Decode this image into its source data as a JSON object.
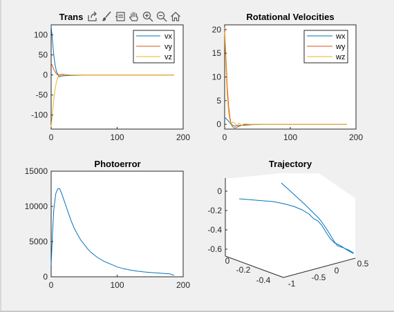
{
  "figure": {
    "background": "#f0f0f0",
    "colors": {
      "vx": "#0072bd",
      "vy": "#d95319",
      "vz": "#edb120",
      "trajectory": "#0072bd"
    }
  },
  "toolbar": {
    "icons": [
      "export-icon",
      "brush-icon",
      "data-tips-icon",
      "pan-icon",
      "zoom-in-icon",
      "zoom-out-icon",
      "home-icon"
    ]
  },
  "chart_data": [
    {
      "type": "line",
      "title": "Trans",
      "xlim": [
        0,
        200
      ],
      "ylim": [
        -135,
        125
      ],
      "xticks": [
        0,
        100,
        200
      ],
      "yticks": [
        -100,
        -50,
        0,
        50,
        100
      ],
      "legend": "top-right",
      "grid": false,
      "series": [
        {
          "name": "vx",
          "x": [
            0,
            2,
            4,
            6,
            8,
            10,
            12,
            15,
            20,
            30,
            50,
            80,
            120,
            186
          ],
          "y": [
            122,
            85,
            50,
            25,
            10,
            2,
            -5,
            -3,
            -2,
            -1,
            0,
            0,
            0,
            0
          ]
        },
        {
          "name": "vy",
          "x": [
            0,
            2,
            4,
            6,
            8,
            10,
            13,
            16,
            20,
            30,
            50,
            80,
            120,
            186
          ],
          "y": [
            30,
            22,
            14,
            8,
            3,
            0,
            0,
            2,
            1,
            0,
            0,
            0,
            0,
            0
          ]
        },
        {
          "name": "vz",
          "x": [
            0,
            2,
            4,
            6,
            8,
            10,
            13,
            16,
            20,
            30,
            50,
            80,
            120,
            186
          ],
          "y": [
            -130,
            -95,
            -60,
            -35,
            -18,
            -7,
            -2,
            -1,
            0,
            0,
            0,
            0,
            0,
            0
          ]
        }
      ]
    },
    {
      "type": "line",
      "title": "Rotational Velocities",
      "xlim": [
        0,
        200
      ],
      "ylim": [
        -1,
        21
      ],
      "xticks": [
        0,
        100,
        200
      ],
      "yticks": [
        0,
        5,
        10,
        15,
        20
      ],
      "legend": "top-right",
      "grid": false,
      "series": [
        {
          "name": "wx",
          "x": [
            0,
            5,
            10,
            15,
            20,
            25,
            30,
            40,
            60,
            80,
            100,
            140,
            186
          ],
          "y": [
            1.5,
            0.8,
            0.0,
            -0.4,
            -0.3,
            -0.2,
            -0.2,
            -0.1,
            0,
            0,
            0,
            0,
            0
          ]
        },
        {
          "name": "wy",
          "x": [
            0,
            2,
            4,
            6,
            8,
            10,
            12,
            15,
            18,
            22,
            26,
            30,
            40,
            60,
            80,
            100,
            140,
            186
          ],
          "y": [
            20.5,
            14,
            8,
            4,
            1.5,
            0,
            -0.5,
            -0.8,
            -0.7,
            -0.4,
            -0.2,
            -0.1,
            -0.05,
            0,
            0,
            0,
            0,
            0
          ]
        },
        {
          "name": "wz",
          "x": [
            0,
            2,
            4,
            6,
            8,
            10,
            12,
            15,
            18,
            22,
            26,
            30,
            40,
            60,
            80,
            100,
            140,
            186
          ],
          "y": [
            19.5,
            12,
            6,
            2.5,
            0.8,
            0.2,
            0.5,
            0.3,
            -0.3,
            0.2,
            -0.2,
            0.1,
            0,
            0,
            0,
            0,
            0,
            0
          ]
        }
      ]
    },
    {
      "type": "line",
      "title": "Photoerror",
      "xlim": [
        0,
        200
      ],
      "ylim": [
        0,
        15000
      ],
      "xticks": [
        0,
        100,
        200
      ],
      "yticks": [
        0,
        5000,
        10000,
        15000
      ],
      "grid": false,
      "series": [
        {
          "x": [
            0,
            2,
            4,
            7,
            10,
            13,
            16,
            19,
            22,
            26,
            30,
            35,
            40,
            45,
            50,
            55,
            60,
            70,
            80,
            90,
            100,
            110,
            120,
            130,
            140,
            150,
            160,
            170,
            180,
            186
          ],
          "y": [
            1700,
            6000,
            9500,
            11800,
            12500,
            12500,
            11800,
            11000,
            10200,
            9100,
            8000,
            6900,
            6000,
            5200,
            4600,
            4000,
            3500,
            2750,
            2200,
            1800,
            1400,
            1150,
            950,
            800,
            700,
            620,
            550,
            480,
            420,
            200
          ]
        }
      ]
    },
    {
      "type": "line",
      "title": "Trajectory",
      "grid": false,
      "axes3d": {
        "z_ticks": [
          0,
          -0.2,
          -0.4,
          -0.6
        ],
        "y_ticks": [
          0,
          -0.2,
          -0.4
        ],
        "x_ticks": [
          -1,
          -0.5,
          0,
          0.5
        ]
      }
    }
  ]
}
